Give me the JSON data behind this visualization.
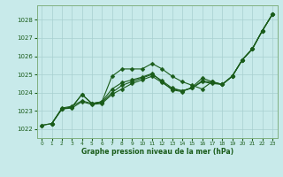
{
  "title": "Graphe pression niveau de la mer (hPa)",
  "bg_color": "#c8eaea",
  "grid_color": "#a8d0d0",
  "line_color": "#1a5c1a",
  "ylim": [
    1021.5,
    1028.8
  ],
  "xlim": [
    -0.5,
    23.5
  ],
  "yticks": [
    1022,
    1023,
    1024,
    1025,
    1026,
    1027,
    1028
  ],
  "xticks": [
    0,
    1,
    2,
    3,
    4,
    5,
    6,
    7,
    8,
    9,
    10,
    11,
    12,
    13,
    14,
    15,
    16,
    17,
    18,
    19,
    20,
    21,
    22,
    23
  ],
  "line1_x": [
    0,
    1,
    2,
    3,
    4,
    5,
    6,
    7,
    8,
    9,
    10,
    11,
    12,
    13,
    14,
    15,
    16,
    17,
    18,
    19,
    20,
    21,
    22,
    23
  ],
  "line1_y": [
    1022.2,
    1022.3,
    1023.1,
    1023.2,
    1023.9,
    1023.4,
    1023.5,
    1024.9,
    1025.3,
    1025.3,
    1025.3,
    1025.6,
    1025.3,
    1024.9,
    1024.6,
    1024.4,
    1024.2,
    1024.6,
    1024.45,
    1024.9,
    1025.8,
    1026.4,
    1027.4,
    1028.3
  ],
  "line2_x": [
    0,
    1,
    2,
    3,
    4,
    5,
    6,
    7,
    8,
    9,
    10,
    11,
    12,
    13,
    14,
    15,
    16,
    17,
    18,
    19,
    20,
    21,
    22,
    23
  ],
  "line2_y": [
    1022.2,
    1022.3,
    1023.1,
    1023.2,
    1023.9,
    1023.4,
    1023.5,
    1024.2,
    1024.55,
    1024.7,
    1024.85,
    1025.05,
    1024.6,
    1024.15,
    1024.05,
    1024.3,
    1024.8,
    1024.6,
    1024.45,
    1024.9,
    1025.8,
    1026.4,
    1027.4,
    1028.3
  ],
  "line3_x": [
    1,
    2,
    3,
    4,
    5,
    6,
    7,
    8,
    9,
    10,
    11,
    12,
    13,
    14,
    15,
    16,
    17,
    18,
    19,
    20,
    21,
    22,
    23
  ],
  "line3_y": [
    1022.3,
    1023.1,
    1023.15,
    1023.5,
    1023.35,
    1023.4,
    1023.9,
    1024.2,
    1024.5,
    1024.7,
    1024.9,
    1024.55,
    1024.2,
    1024.1,
    1024.25,
    1024.65,
    1024.55,
    1024.45,
    1024.9,
    1025.8,
    1026.4,
    1027.4,
    1028.3
  ],
  "line4_x": [
    1,
    2,
    3,
    4,
    5,
    6,
    7,
    8,
    9,
    10,
    11,
    12,
    13,
    14,
    15,
    16,
    17,
    18,
    19,
    20,
    21,
    22,
    23
  ],
  "line4_y": [
    1022.3,
    1023.15,
    1023.25,
    1023.55,
    1023.4,
    1023.45,
    1024.0,
    1024.4,
    1024.6,
    1024.8,
    1025.0,
    1024.65,
    1024.25,
    1024.1,
    1024.25,
    1024.6,
    1024.5,
    1024.45,
    1024.9,
    1025.8,
    1026.4,
    1027.4,
    1028.3
  ]
}
